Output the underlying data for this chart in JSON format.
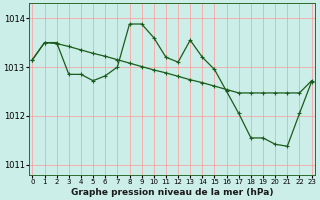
{
  "title": "Graphe pression niveau de la mer (hPa)",
  "background_color": "#cceee8",
  "grid_color": "#ff9999",
  "line_color": "#1a5c1a",
  "xlim": [
    -0.3,
    23.3
  ],
  "ylim": [
    1010.8,
    1014.3
  ],
  "yticks": [
    1011,
    1012,
    1013,
    1014
  ],
  "xticks": [
    0,
    1,
    2,
    3,
    4,
    5,
    6,
    7,
    8,
    9,
    10,
    11,
    12,
    13,
    14,
    15,
    16,
    17,
    18,
    19,
    20,
    21,
    22,
    23
  ],
  "series1_x": [
    0,
    1,
    2,
    3,
    4,
    5,
    6,
    7,
    8,
    9,
    10,
    11,
    12,
    13,
    14,
    15,
    16,
    17,
    18,
    19,
    20,
    21,
    22,
    23
  ],
  "series1_y": [
    1013.15,
    1013.5,
    1013.5,
    1012.85,
    1012.85,
    1012.72,
    1012.82,
    1013.0,
    1013.88,
    1013.88,
    1013.6,
    1013.2,
    1013.1,
    1013.55,
    1013.2,
    1012.95,
    1012.5,
    1012.05,
    1011.55,
    1011.55,
    1011.42,
    1011.38,
    1012.05,
    1012.7
  ],
  "series2_x": [
    0,
    1,
    2,
    3,
    4,
    5,
    6,
    7,
    8,
    9,
    10,
    11,
    12,
    13,
    14,
    15,
    16,
    17,
    18,
    19,
    20,
    21,
    22,
    23
  ],
  "series2_y": [
    1013.15,
    1013.5,
    1013.48,
    1013.42,
    1013.35,
    1013.28,
    1013.22,
    1013.15,
    1013.08,
    1013.01,
    1012.94,
    1012.88,
    1012.81,
    1012.74,
    1012.68,
    1012.61,
    1012.54,
    1012.47,
    1012.47,
    1012.47,
    1012.47,
    1012.47,
    1012.47,
    1012.72
  ]
}
